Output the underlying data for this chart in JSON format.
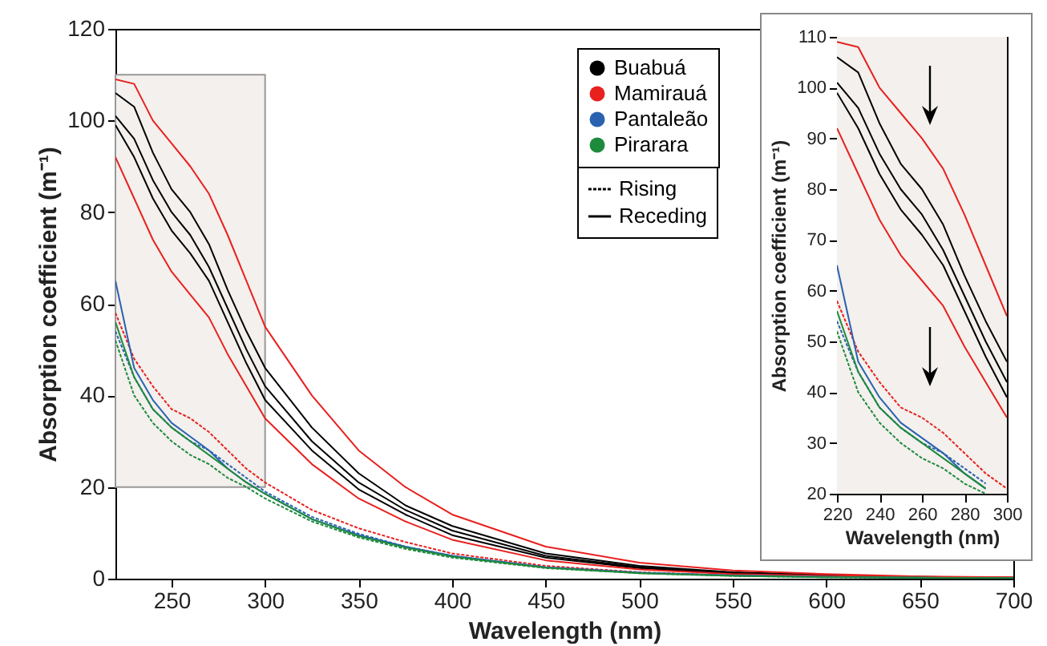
{
  "chart_data": [
    {
      "type": "line",
      "xlabel": "Wavelength (nm)",
      "ylabel": "Absorption coefficient (m⁻¹)",
      "xlim": [
        220,
        700
      ],
      "ylim": [
        0,
        120
      ],
      "xticks": [
        250,
        300,
        350,
        400,
        450,
        500,
        550,
        600,
        650,
        700
      ],
      "yticks": [
        0,
        20,
        40,
        60,
        80,
        100,
        120
      ],
      "legend": "top right",
      "bands": [
        {
          "axis": "x",
          "from": 220,
          "to": 300,
          "color": "#f3f0ed"
        }
      ],
      "x": [
        220,
        230,
        240,
        250,
        260,
        270,
        280,
        290,
        300,
        325,
        350,
        375,
        400,
        450,
        500,
        550,
        600,
        650,
        700
      ],
      "series": [
        {
          "name": "Buabuá",
          "color": "#000000",
          "line_style": "solid",
          "values": [
            106,
            103,
            93,
            85,
            80,
            73,
            63,
            54,
            46,
            33,
            23,
            16,
            11.5,
            5.5,
            2.8,
            1.4,
            0.8,
            0.4,
            0.2
          ]
        },
        {
          "color": "#000000",
          "line_style": "solid",
          "values": [
            101,
            96,
            87,
            80,
            75,
            68,
            59,
            50,
            42,
            30,
            21,
            15,
            10.5,
            5,
            2.5,
            1.3,
            0.7,
            0.4,
            0.2
          ]
        },
        {
          "color": "#000000",
          "line_style": "solid",
          "values": [
            99,
            92,
            83,
            76,
            71,
            65,
            56,
            47,
            39,
            28,
            19.5,
            14,
            9.5,
            4.6,
            2.3,
            1.2,
            0.7,
            0.3,
            0.2
          ]
        },
        {
          "name": "Mamirauá",
          "color": "#e8201e",
          "line_style": "solid",
          "values": [
            109,
            108,
            100,
            95,
            90,
            84,
            75,
            65,
            55,
            40,
            28,
            20,
            14,
            7,
            3.5,
            1.8,
            1,
            0.5,
            0.3
          ]
        },
        {
          "color": "#e8201e",
          "line_style": "solid",
          "values": [
            92,
            83,
            74,
            67,
            62,
            57,
            49,
            42,
            35,
            25,
            17.5,
            12.5,
            8.5,
            4,
            2,
            1,
            0.6,
            0.3,
            0.2
          ]
        },
        {
          "color": "#e8201e",
          "line_style": "dashed",
          "values": [
            58,
            48,
            42,
            37,
            35,
            32,
            28,
            24,
            21,
            15,
            11,
            8,
            5.5,
            2.8,
            1.4,
            0.7,
            0.4,
            0.2,
            0.1
          ]
        },
        {
          "name": "Pantaleão",
          "color": "#2a62b0",
          "line_style": "solid",
          "values": [
            65,
            46,
            39,
            34,
            31,
            28,
            24,
            21,
            18.5,
            13,
            9.5,
            7,
            5,
            2.5,
            1.3,
            0.7,
            0.4,
            0.2,
            0.1
          ]
        },
        {
          "color": "#2a62b0",
          "line_style": "dashed",
          "values": [
            54,
            44,
            37,
            33,
            30,
            28,
            25,
            22,
            19,
            13.5,
            9.8,
            7,
            5,
            2.5,
            1.3,
            0.7,
            0.4,
            0.2,
            0.1
          ]
        },
        {
          "name": "Pirarara",
          "color": "#1e8a3c",
          "line_style": "solid",
          "values": [
            56,
            44,
            37,
            33,
            30,
            27,
            24,
            21,
            18.5,
            13,
            9.3,
            6.8,
            4.8,
            2.4,
            1.2,
            0.6,
            0.3,
            0.2,
            0.1
          ]
        },
        {
          "color": "#1e8a3c",
          "line_style": "dashed",
          "values": [
            52,
            40,
            34,
            30,
            27,
            25,
            22,
            20,
            17.5,
            12.5,
            9,
            6.5,
            4.6,
            2.3,
            1.2,
            0.6,
            0.3,
            0.2,
            0.1
          ]
        },
        {
          "name": "Rising",
          "color": "#000000",
          "line_style": "dashed",
          "values": [
            null,
            null,
            null,
            null,
            null,
            null,
            null,
            null,
            null,
            null,
            null,
            null,
            null,
            null,
            null,
            null,
            null,
            null,
            null
          ]
        },
        {
          "name": "Receding",
          "color": "#000000",
          "line_style": "solid",
          "values": [
            null,
            null,
            null,
            null,
            null,
            null,
            null,
            null,
            null,
            null,
            null,
            null,
            null,
            null,
            null,
            null,
            null,
            null,
            null
          ]
        }
      ]
    },
    {
      "type": "line",
      "xlabel": "Wavelength (nm)",
      "ylabel": "Absorption coefficient (m⁻¹)",
      "xlim": [
        220,
        300
      ],
      "ylim": [
        20,
        110
      ],
      "xticks": [
        220,
        240,
        260,
        280,
        300
      ],
      "yticks": [
        20,
        30,
        40,
        50,
        60,
        70,
        80,
        90,
        100,
        110
      ],
      "bands": [
        {
          "axis": "x",
          "from": 220,
          "to": 300,
          "color": "#f3f0ed"
        }
      ],
      "x": [
        220,
        230,
        240,
        250,
        260,
        270,
        280,
        290,
        300
      ],
      "series": [
        {
          "color": "#000000",
          "line_style": "solid",
          "values": [
            106,
            103,
            93,
            85,
            80,
            73,
            63,
            54,
            46
          ]
        },
        {
          "color": "#000000",
          "line_style": "solid",
          "values": [
            101,
            96,
            87,
            80,
            75,
            68,
            59,
            50,
            42
          ]
        },
        {
          "color": "#000000",
          "line_style": "solid",
          "values": [
            99,
            92,
            83,
            76,
            71,
            65,
            56,
            47,
            39
          ]
        },
        {
          "color": "#e8201e",
          "line_style": "solid",
          "values": [
            109,
            108,
            100,
            95,
            90,
            84,
            75,
            65,
            55
          ]
        },
        {
          "color": "#e8201e",
          "line_style": "solid",
          "values": [
            92,
            83,
            74,
            67,
            62,
            57,
            49,
            42,
            35
          ]
        },
        {
          "color": "#e8201e",
          "line_style": "dashed",
          "values": [
            58,
            48,
            42,
            37,
            35,
            32,
            28,
            24,
            21
          ]
        },
        {
          "color": "#2a62b0",
          "line_style": "solid",
          "x": [
            220,
            230,
            240,
            250,
            260,
            270,
            280,
            290
          ],
          "values": [
            65,
            46,
            39,
            34,
            31,
            28,
            24,
            21
          ]
        },
        {
          "color": "#2a62b0",
          "line_style": "dashed",
          "x": [
            220,
            230,
            240,
            250,
            260,
            270,
            280,
            290
          ],
          "values": [
            54,
            44,
            37,
            33,
            30,
            28,
            25,
            22
          ]
        },
        {
          "color": "#1e8a3c",
          "line_style": "solid",
          "x": [
            220,
            230,
            240,
            250,
            260,
            270,
            280,
            290
          ],
          "values": [
            56,
            44,
            37,
            33,
            30,
            27,
            24,
            21
          ]
        },
        {
          "color": "#1e8a3c",
          "line_style": "dashed",
          "x": [
            220,
            230,
            240,
            250,
            260,
            270,
            280,
            290
          ],
          "values": [
            52,
            40,
            34,
            30,
            27,
            25,
            22,
            20
          ]
        }
      ]
    }
  ]
}
